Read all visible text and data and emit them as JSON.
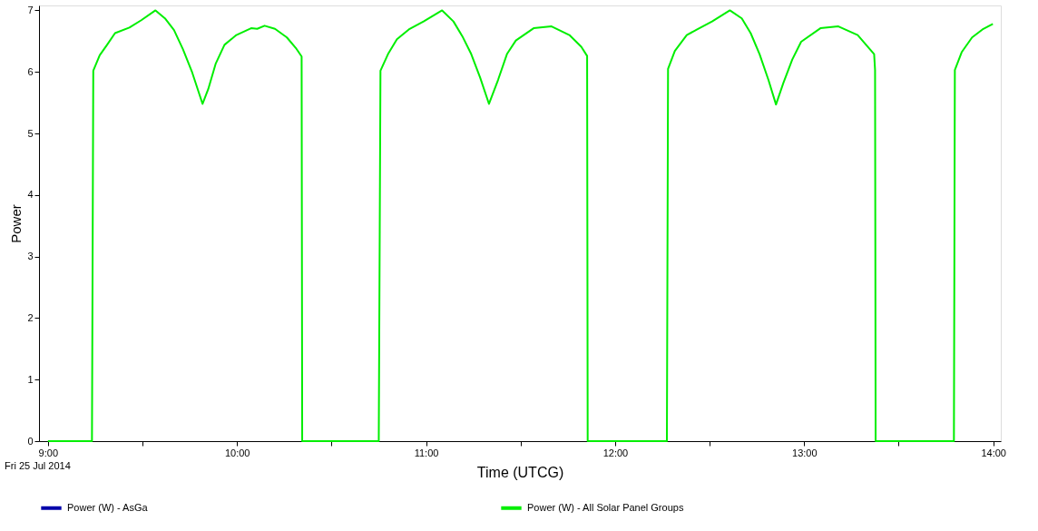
{
  "chart_data": {
    "type": "line",
    "xlabel": "Time (UTCG)",
    "ylabel": "Power",
    "xlim": [
      8.953,
      14.04
    ],
    "ylim": [
      0,
      7.08
    ],
    "xticks": [
      {
        "value": 9,
        "label": "9:00"
      },
      {
        "value": 9.5,
        "label": null
      },
      {
        "value": 10,
        "label": "10:00"
      },
      {
        "value": 10.5,
        "label": null
      },
      {
        "value": 11,
        "label": "11:00"
      },
      {
        "value": 11.5,
        "label": null
      },
      {
        "value": 12,
        "label": "12:00"
      },
      {
        "value": 12.5,
        "label": null
      },
      {
        "value": 13,
        "label": "13:00"
      },
      {
        "value": 13.5,
        "label": null
      },
      {
        "value": 14,
        "label": "14:00"
      }
    ],
    "yticks": [
      0,
      1,
      2,
      3,
      4,
      5,
      6,
      7
    ],
    "grid": false,
    "legend": "bottom",
    "line_style": "solid",
    "marker": "none",
    "annotations": [
      "Fri 25  Jul 2014"
    ],
    "series": [
      {
        "name": "Power (W) - AsGa",
        "color": "#0000aa"
      },
      {
        "name": "Power (W) - All Solar Panel Groups",
        "color": "#00ee00",
        "x": [
          9.0,
          9.233,
          9.24,
          9.274,
          9.313,
          9.355,
          9.431,
          9.494,
          9.569,
          9.619,
          9.667,
          9.714,
          9.761,
          9.818,
          9.848,
          9.887,
          9.934,
          9.997,
          10.075,
          10.107,
          10.146,
          10.201,
          10.264,
          10.311,
          10.342,
          10.345,
          10.75,
          10.759,
          10.799,
          10.846,
          10.909,
          10.987,
          11.085,
          11.145,
          11.192,
          11.239,
          11.286,
          11.333,
          11.381,
          11.428,
          11.475,
          11.569,
          11.664,
          11.758,
          11.821,
          11.852,
          11.855,
          12.274,
          12.28,
          12.316,
          12.379,
          12.434,
          12.513,
          12.607,
          12.67,
          12.717,
          12.764,
          12.811,
          12.851,
          12.89,
          12.937,
          12.984,
          13.086,
          13.181,
          13.283,
          13.37,
          13.375,
          13.378,
          13.792,
          13.797,
          13.833,
          13.888,
          13.943,
          13.998
        ],
        "values": [
          0,
          0,
          6.02,
          6.27,
          6.44,
          6.63,
          6.72,
          6.84,
          7.0,
          6.87,
          6.68,
          6.37,
          6.01,
          5.48,
          5.72,
          6.13,
          6.44,
          6.6,
          6.71,
          6.7,
          6.75,
          6.7,
          6.56,
          6.39,
          6.25,
          0,
          0,
          6.02,
          6.29,
          6.53,
          6.69,
          6.82,
          7.0,
          6.82,
          6.58,
          6.29,
          5.91,
          5.48,
          5.87,
          6.29,
          6.51,
          6.71,
          6.74,
          6.6,
          6.41,
          6.26,
          0,
          0,
          6.05,
          6.34,
          6.6,
          6.69,
          6.82,
          7.0,
          6.87,
          6.63,
          6.29,
          5.87,
          5.47,
          5.82,
          6.2,
          6.49,
          6.71,
          6.74,
          6.6,
          6.29,
          6.03,
          0,
          0,
          6.03,
          6.32,
          6.56,
          6.69,
          6.78
        ]
      }
    ]
  }
}
